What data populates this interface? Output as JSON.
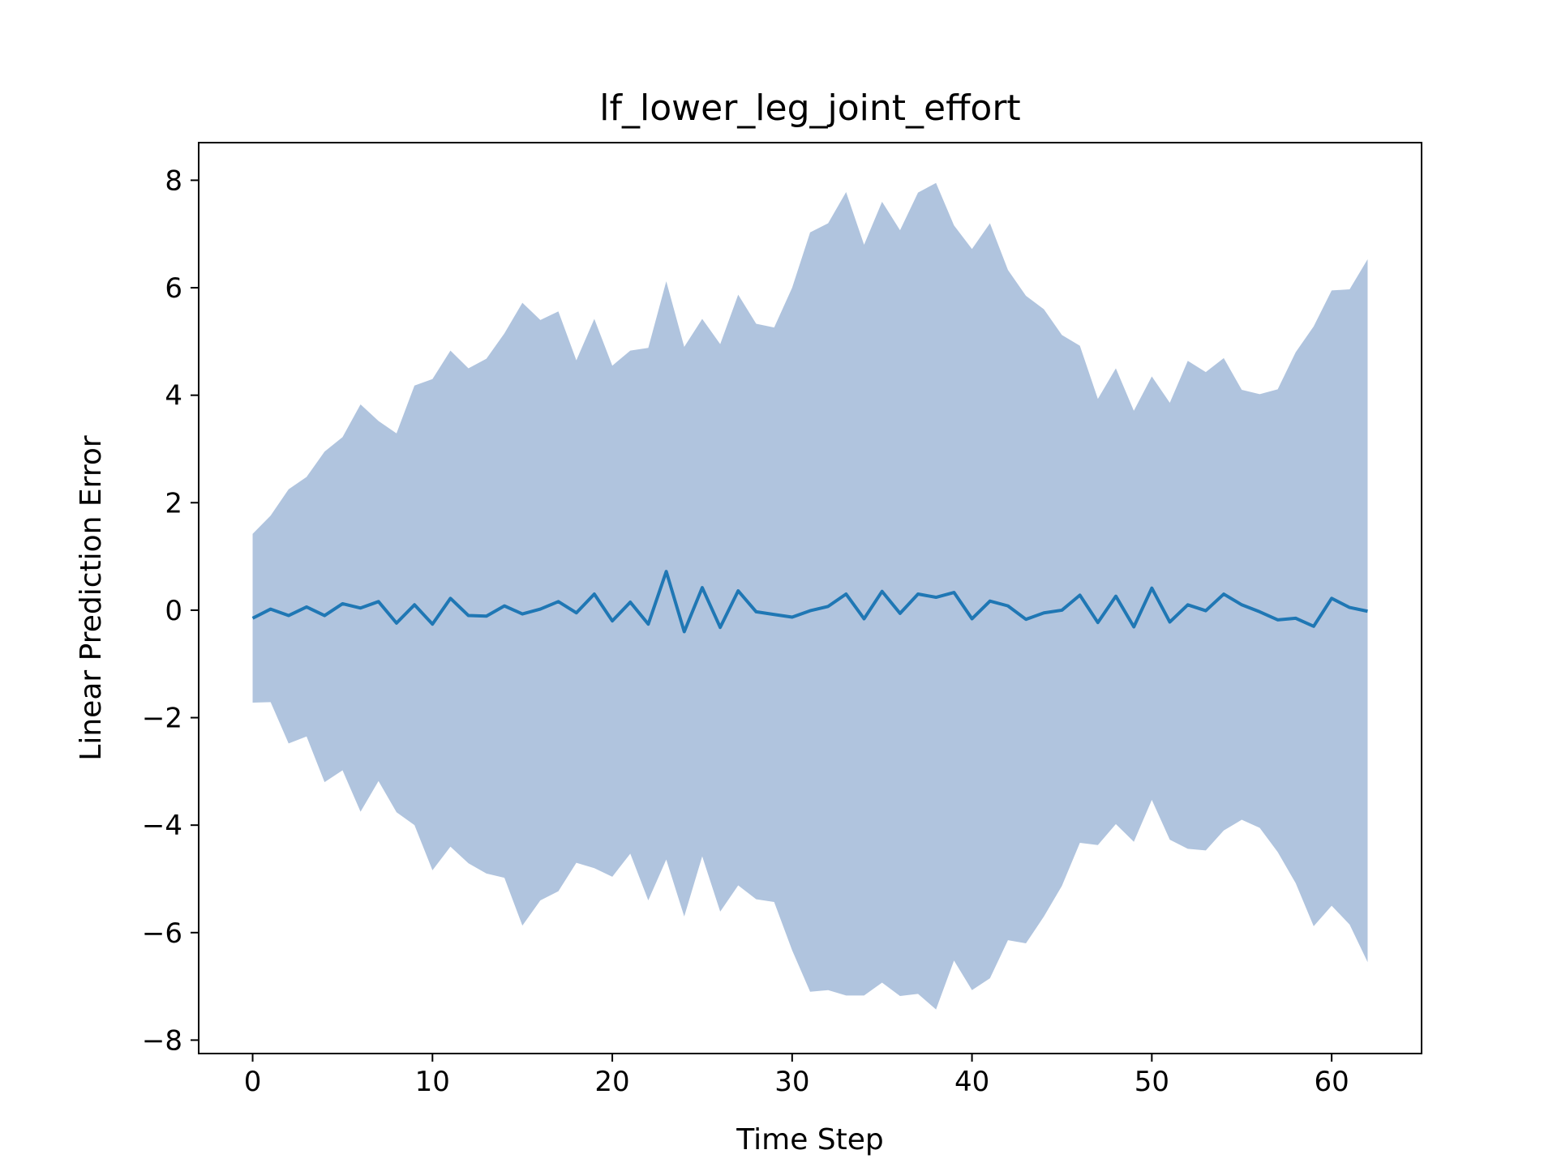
{
  "chart_data": {
    "type": "line",
    "title": "lf_lower_leg_joint_effort",
    "xlabel": "Time Step",
    "ylabel": "Linear Prediction Error",
    "xlim": [
      -3,
      65
    ],
    "ylim": [
      -8.25,
      8.7
    ],
    "xticks": [
      0,
      10,
      20,
      30,
      40,
      50,
      60
    ],
    "yticks": [
      -8,
      -6,
      -4,
      -2,
      0,
      2,
      4,
      6,
      8
    ],
    "xtick_labels": [
      "0",
      "10",
      "20",
      "30",
      "40",
      "50",
      "60"
    ],
    "ytick_labels": [
      "−8",
      "−6",
      "−4",
      "−2",
      "0",
      "2",
      "4",
      "6",
      "8"
    ],
    "grid": false,
    "line_color": "#1f77b4",
    "band_color": "#b0c4de",
    "x": [
      0,
      1,
      2,
      3,
      4,
      5,
      6,
      7,
      8,
      9,
      10,
      11,
      12,
      13,
      14,
      15,
      16,
      17,
      18,
      19,
      20,
      21,
      22,
      23,
      24,
      25,
      26,
      27,
      28,
      29,
      30,
      31,
      32,
      33,
      34,
      35,
      36,
      37,
      38,
      39,
      40,
      41,
      42,
      43,
      44,
      45,
      46,
      47,
      48,
      49,
      50,
      51,
      52,
      53,
      54,
      55,
      56,
      57,
      58,
      59,
      60,
      61,
      62
    ],
    "series": [
      {
        "values": [
          -0.15,
          0.02,
          -0.1,
          0.06,
          -0.1,
          0.12,
          0.04,
          0.16,
          -0.24,
          0.1,
          -0.26,
          0.22,
          -0.1,
          -0.11,
          0.08,
          -0.07,
          0.02,
          0.16,
          -0.05,
          0.3,
          -0.2,
          0.15,
          -0.26,
          0.72,
          -0.4,
          0.42,
          -0.32,
          0.36,
          -0.03,
          -0.08,
          -0.13,
          -0.01,
          0.07,
          0.3,
          -0.16,
          0.35,
          -0.06,
          0.3,
          0.24,
          0.33,
          -0.16,
          0.17,
          0.08,
          -0.17,
          -0.05,
          0.0,
          0.28,
          -0.23,
          0.26,
          -0.31,
          0.41,
          -0.22,
          0.1,
          -0.01,
          0.3,
          0.1,
          -0.03,
          -0.18,
          -0.15,
          -0.3,
          0.22,
          0.05,
          -0.02
        ]
      }
    ],
    "band": {
      "upper": [
        1.42,
        1.76,
        2.25,
        2.48,
        2.95,
        3.22,
        3.83,
        3.52,
        3.29,
        4.18,
        4.3,
        4.83,
        4.5,
        4.68,
        5.15,
        5.72,
        5.4,
        5.56,
        4.65,
        5.42,
        4.55,
        4.83,
        4.88,
        6.12,
        4.9,
        5.42,
        4.95,
        5.87,
        5.33,
        5.26,
        6.0,
        7.03,
        7.2,
        7.78,
        6.8,
        7.6,
        7.07,
        7.77,
        7.95,
        7.16,
        6.72,
        7.2,
        6.33,
        5.85,
        5.6,
        5.12,
        4.92,
        3.93,
        4.5,
        3.71,
        4.35,
        3.86,
        4.64,
        4.43,
        4.69,
        4.1,
        4.02,
        4.11,
        4.8,
        5.28,
        5.95,
        5.97,
        6.53
      ],
      "lower": [
        -1.72,
        -1.71,
        -2.48,
        -2.35,
        -3.2,
        -2.98,
        -3.75,
        -3.18,
        -3.76,
        -4.0,
        -4.84,
        -4.4,
        -4.71,
        -4.9,
        -4.98,
        -5.87,
        -5.4,
        -5.23,
        -4.7,
        -4.8,
        -4.96,
        -4.53,
        -5.4,
        -4.64,
        -5.7,
        -4.58,
        -5.61,
        -5.12,
        -5.38,
        -5.43,
        -6.33,
        -7.1,
        -7.07,
        -7.17,
        -7.17,
        -6.93,
        -7.18,
        -7.14,
        -7.43,
        -6.52,
        -7.07,
        -6.85,
        -6.14,
        -6.2,
        -5.7,
        -5.13,
        -4.33,
        -4.37,
        -3.98,
        -4.31,
        -3.53,
        -4.27,
        -4.44,
        -4.47,
        -4.1,
        -3.9,
        -4.05,
        -4.5,
        -5.08,
        -5.88,
        -5.5,
        -5.85,
        -6.55
      ]
    }
  }
}
